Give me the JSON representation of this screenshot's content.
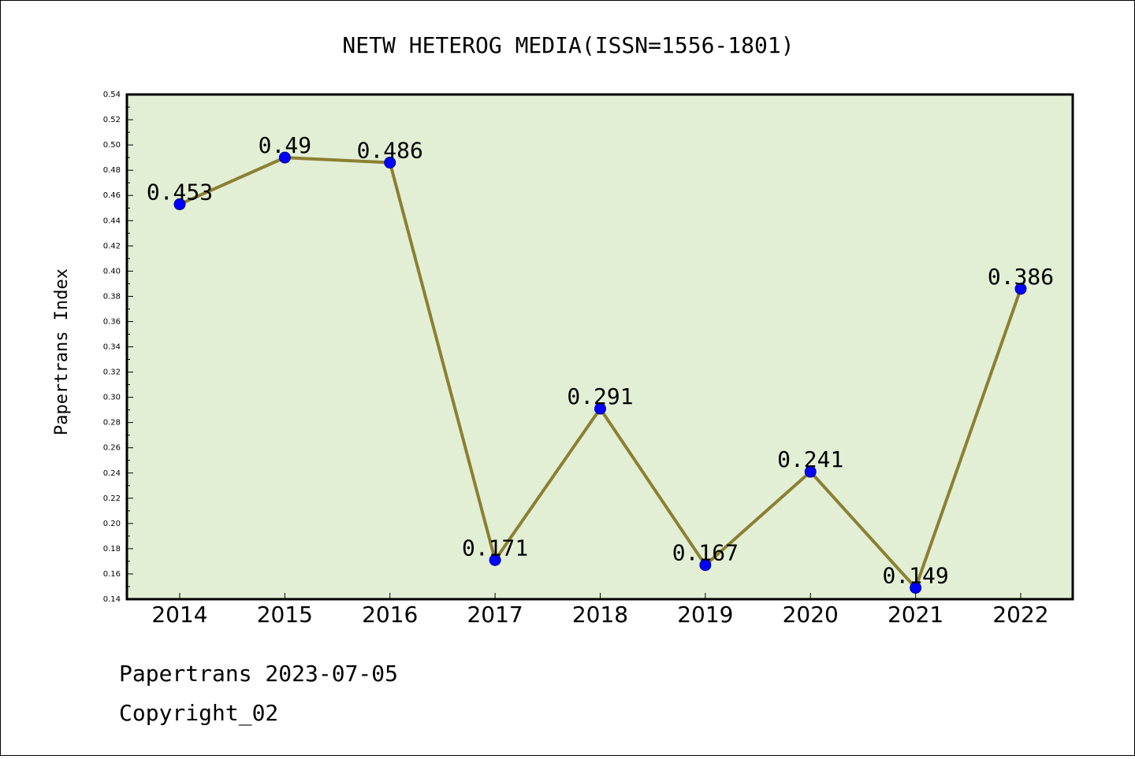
{
  "chart_data": {
    "type": "line",
    "title": "NETW HETEROG MEDIA(ISSN=1556-1801)",
    "ylabel": "Papertrans Index",
    "xlabel": "",
    "categories": [
      "2014",
      "2015",
      "2016",
      "2017",
      "2018",
      "2019",
      "2020",
      "2021",
      "2022"
    ],
    "values": [
      0.453,
      0.49,
      0.486,
      0.171,
      0.291,
      0.167,
      0.241,
      0.149,
      0.386
    ],
    "value_labels": [
      "0.453",
      "0.49",
      "0.486",
      "0.171",
      "0.291",
      "0.167",
      "0.241",
      "0.149",
      "0.386"
    ],
    "ylim": [
      0.14,
      0.54
    ],
    "yticks": [
      "0.14",
      "0.16",
      "0.18",
      "0.20",
      "0.22",
      "0.24",
      "0.26",
      "0.28",
      "0.30",
      "0.32",
      "0.34",
      "0.36",
      "0.38",
      "0.40",
      "0.42",
      "0.44",
      "0.46",
      "0.48",
      "0.50",
      "0.52",
      "0.54"
    ],
    "grid": false,
    "colors": {
      "plot_background": "#e2efd5",
      "line": "#8b8032",
      "marker": "#0000ff"
    }
  },
  "footer": {
    "line1": "Papertrans 2023-07-05",
    "line2": "Copyright_02"
  }
}
